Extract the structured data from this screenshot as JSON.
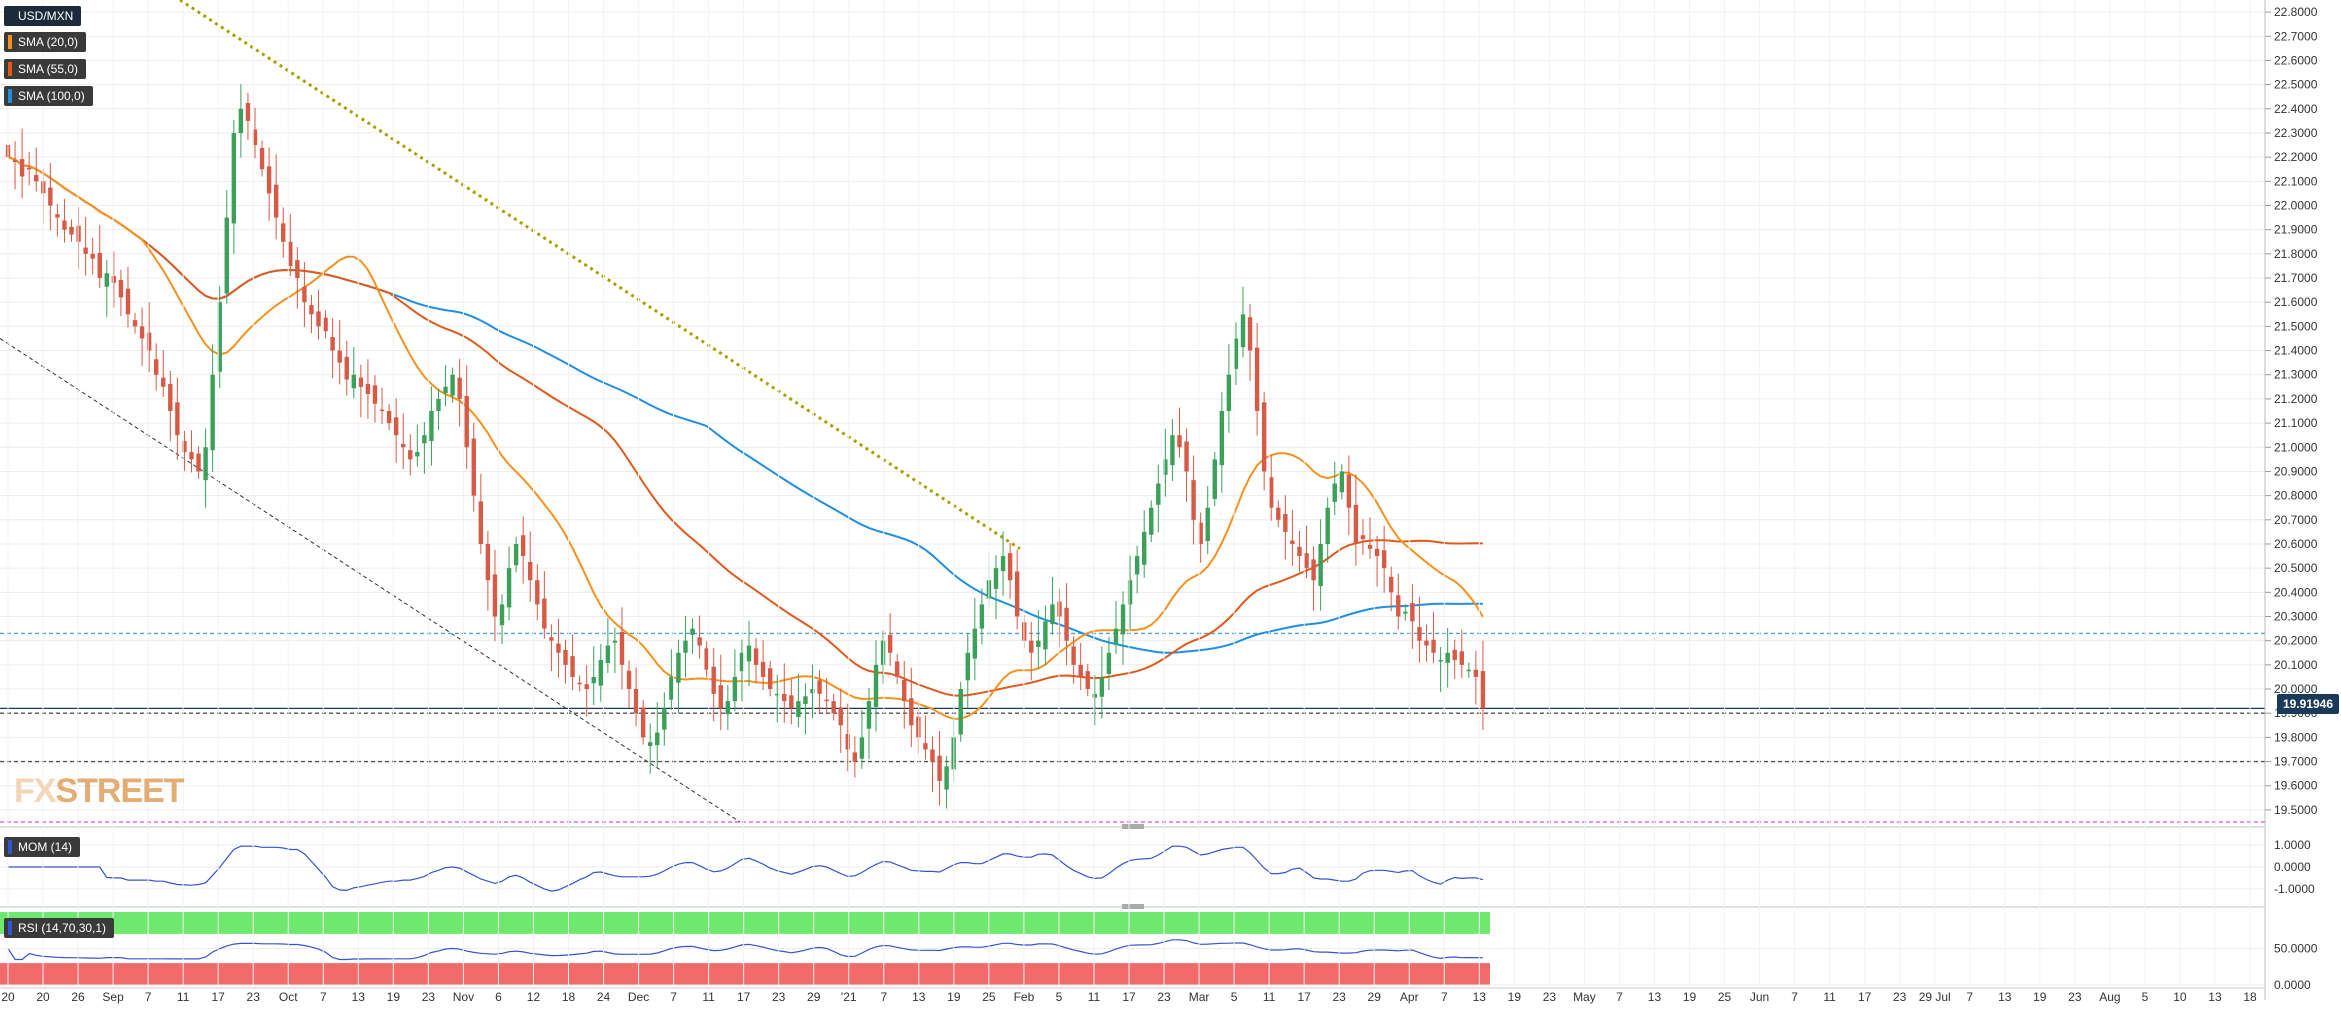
{
  "instrument": "USD/MXN",
  "watermark": {
    "left": "FX",
    "right": "STREET"
  },
  "last_price": "19.91946",
  "colors": {
    "candle_up": "#3aa05a",
    "candle_down": "#d65a45",
    "sma20": "#f5921e",
    "sma55": "#e05a1c",
    "sma100": "#1f8fe0",
    "trendline": "#a8a000",
    "mom_line": "#3355cc",
    "rsi_line": "#3355cc",
    "rsi_overbought": "#6fe86f",
    "rsi_oversold": "#f26b6b",
    "grid": "#ececec"
  },
  "indicators": [
    {
      "name": "USD/MXN",
      "color": "#1c2a3a"
    },
    {
      "name": "SMA (20,0)",
      "color": "#f5921e"
    },
    {
      "name": "SMA (55,0)",
      "color": "#e05a1c"
    },
    {
      "name": "SMA (100,0)",
      "color": "#1f8fe0"
    }
  ],
  "mom_panel": {
    "label": "MOM (14)",
    "ticks": [
      "1.0000",
      "0.0000",
      "-1.0000"
    ]
  },
  "rsi_panel": {
    "label": "RSI (14,70,30,1)",
    "ticks": [
      "50.0000",
      "0.0000"
    ]
  },
  "chart_data": {
    "type": "candlestick",
    "title": "",
    "y_axis": {
      "min": 19.45,
      "max": 22.85,
      "ticks": [
        "22.8000",
        "22.7000",
        "22.6000",
        "22.5000",
        "22.4000",
        "22.3000",
        "22.2000",
        "22.1000",
        "22.0000",
        "21.9000",
        "21.8000",
        "21.7000",
        "21.6000",
        "21.5000",
        "21.4000",
        "21.3000",
        "21.2000",
        "21.1000",
        "21.0000",
        "20.9000",
        "20.8000",
        "20.7000",
        "20.6000",
        "20.5000",
        "20.4000",
        "20.3000",
        "20.2000",
        "20.1000",
        "20.0000",
        "19.9000",
        "19.8000",
        "19.7000",
        "19.6000",
        "19.5000"
      ]
    },
    "x_axis": {
      "ticks": [
        "20",
        "20",
        "26",
        "Sep",
        "7",
        "11",
        "17",
        "23",
        "Oct",
        "7",
        "13",
        "19",
        "23",
        "Nov",
        "6",
        "12",
        "18",
        "24",
        "Dec",
        "7",
        "11",
        "17",
        "23",
        "29",
        "'21",
        "7",
        "13",
        "19",
        "25",
        "Feb",
        "5",
        "11",
        "17",
        "23",
        "Mar",
        "5",
        "11",
        "17",
        "23",
        "29",
        "Apr",
        "7",
        "13",
        "19",
        "23",
        "May",
        "7",
        "13",
        "19",
        "25",
        "Jun",
        "7",
        "11",
        "17",
        "23",
        "29 Jul",
        "7",
        "13",
        "19",
        "23",
        "Aug",
        "5",
        "10",
        "13",
        "18"
      ]
    },
    "horizontal_levels": [
      {
        "value": 20.23,
        "style": "dashed",
        "color": "#4aa3df"
      },
      {
        "value": 19.92,
        "style": "solid",
        "color": "#1b3a5a"
      },
      {
        "value": 19.9,
        "style": "dashed",
        "color": "#555555"
      },
      {
        "value": 19.7,
        "style": "dashed",
        "color": "#555555"
      },
      {
        "value": 19.45,
        "style": "dashed",
        "color": "#d055d0"
      }
    ],
    "trendlines": [
      {
        "from": {
          "x": "Aug 25",
          "y": 22.8
        },
        "to": {
          "x": "Feb 01",
          "y": 20.58
        },
        "style": "dotted",
        "color": "#a8a000"
      },
      {
        "from": {
          "x": "Aug 18",
          "y": 21.45
        },
        "to": {
          "x": "Dec 25",
          "y": 19.52
        },
        "style": "dashed",
        "color": "#333333"
      }
    ],
    "closes": [
      22.2,
      22.18,
      22.12,
      22.15,
      22.1,
      22.05,
      22.0,
      21.95,
      21.9,
      21.88,
      21.85,
      21.8,
      21.78,
      21.7,
      21.72,
      21.68,
      21.62,
      21.55,
      21.5,
      21.45,
      21.4,
      21.3,
      21.25,
      21.15,
      21.05,
      20.98,
      20.95,
      20.9,
      21.0,
      21.3,
      21.6,
      21.95,
      22.3,
      22.4,
      22.35,
      22.25,
      22.15,
      22.05,
      21.95,
      21.85,
      21.75,
      21.7,
      21.6,
      21.55,
      21.5,
      21.48,
      21.4,
      21.35,
      21.28,
      21.3,
      21.25,
      21.22,
      21.18,
      21.15,
      21.1,
      21.05,
      21.0,
      20.95,
      20.98,
      21.05,
      21.15,
      21.2,
      21.25,
      21.3,
      21.2,
      21.0,
      20.8,
      20.6,
      20.45,
      20.3,
      20.35,
      20.5,
      20.6,
      20.55,
      20.45,
      20.35,
      20.25,
      20.2,
      20.15,
      20.1,
      20.05,
      20.02,
      20.0,
      20.05,
      20.12,
      20.18,
      20.2,
      20.1,
      20.0,
      19.9,
      19.8,
      19.78,
      19.82,
      19.92,
      20.05,
      20.15,
      20.2,
      20.25,
      20.18,
      20.08,
      19.98,
      19.92,
      19.95,
      20.05,
      20.15,
      20.18,
      20.1,
      20.05,
      20.0,
      19.98,
      19.95,
      19.92,
      19.95,
      19.97,
      20.0,
      19.98,
      19.95,
      19.9,
      19.85,
      19.75,
      19.7,
      19.8,
      19.95,
      20.1,
      20.2,
      20.15,
      20.05,
      19.95,
      19.85,
      19.8,
      19.75,
      19.7,
      19.62,
      19.68,
      19.8,
      20.0,
      20.15,
      20.25,
      20.35,
      20.45,
      20.5,
      20.55,
      20.45,
      20.3,
      20.2,
      20.15,
      20.2,
      20.28,
      20.35,
      20.3,
      20.2,
      20.1,
      20.05,
      20.0,
      19.98,
      20.05,
      20.15,
      20.25,
      20.35,
      20.45,
      20.55,
      20.65,
      20.75,
      20.85,
      20.95,
      21.05,
      21.0,
      20.9,
      20.7,
      20.6,
      20.75,
      20.95,
      21.15,
      21.3,
      21.45,
      21.55,
      21.4,
      21.15,
      20.9,
      20.75,
      20.7,
      20.65,
      20.6,
      20.55,
      20.5,
      20.45,
      20.6,
      20.75,
      20.85,
      20.9,
      20.75,
      20.6,
      20.62,
      20.58,
      20.55,
      20.5,
      20.4,
      20.3,
      20.32,
      20.28,
      20.2,
      20.18,
      20.15,
      20.12,
      20.15,
      20.12,
      20.1,
      20.08,
      20.05,
      19.92
    ]
  }
}
